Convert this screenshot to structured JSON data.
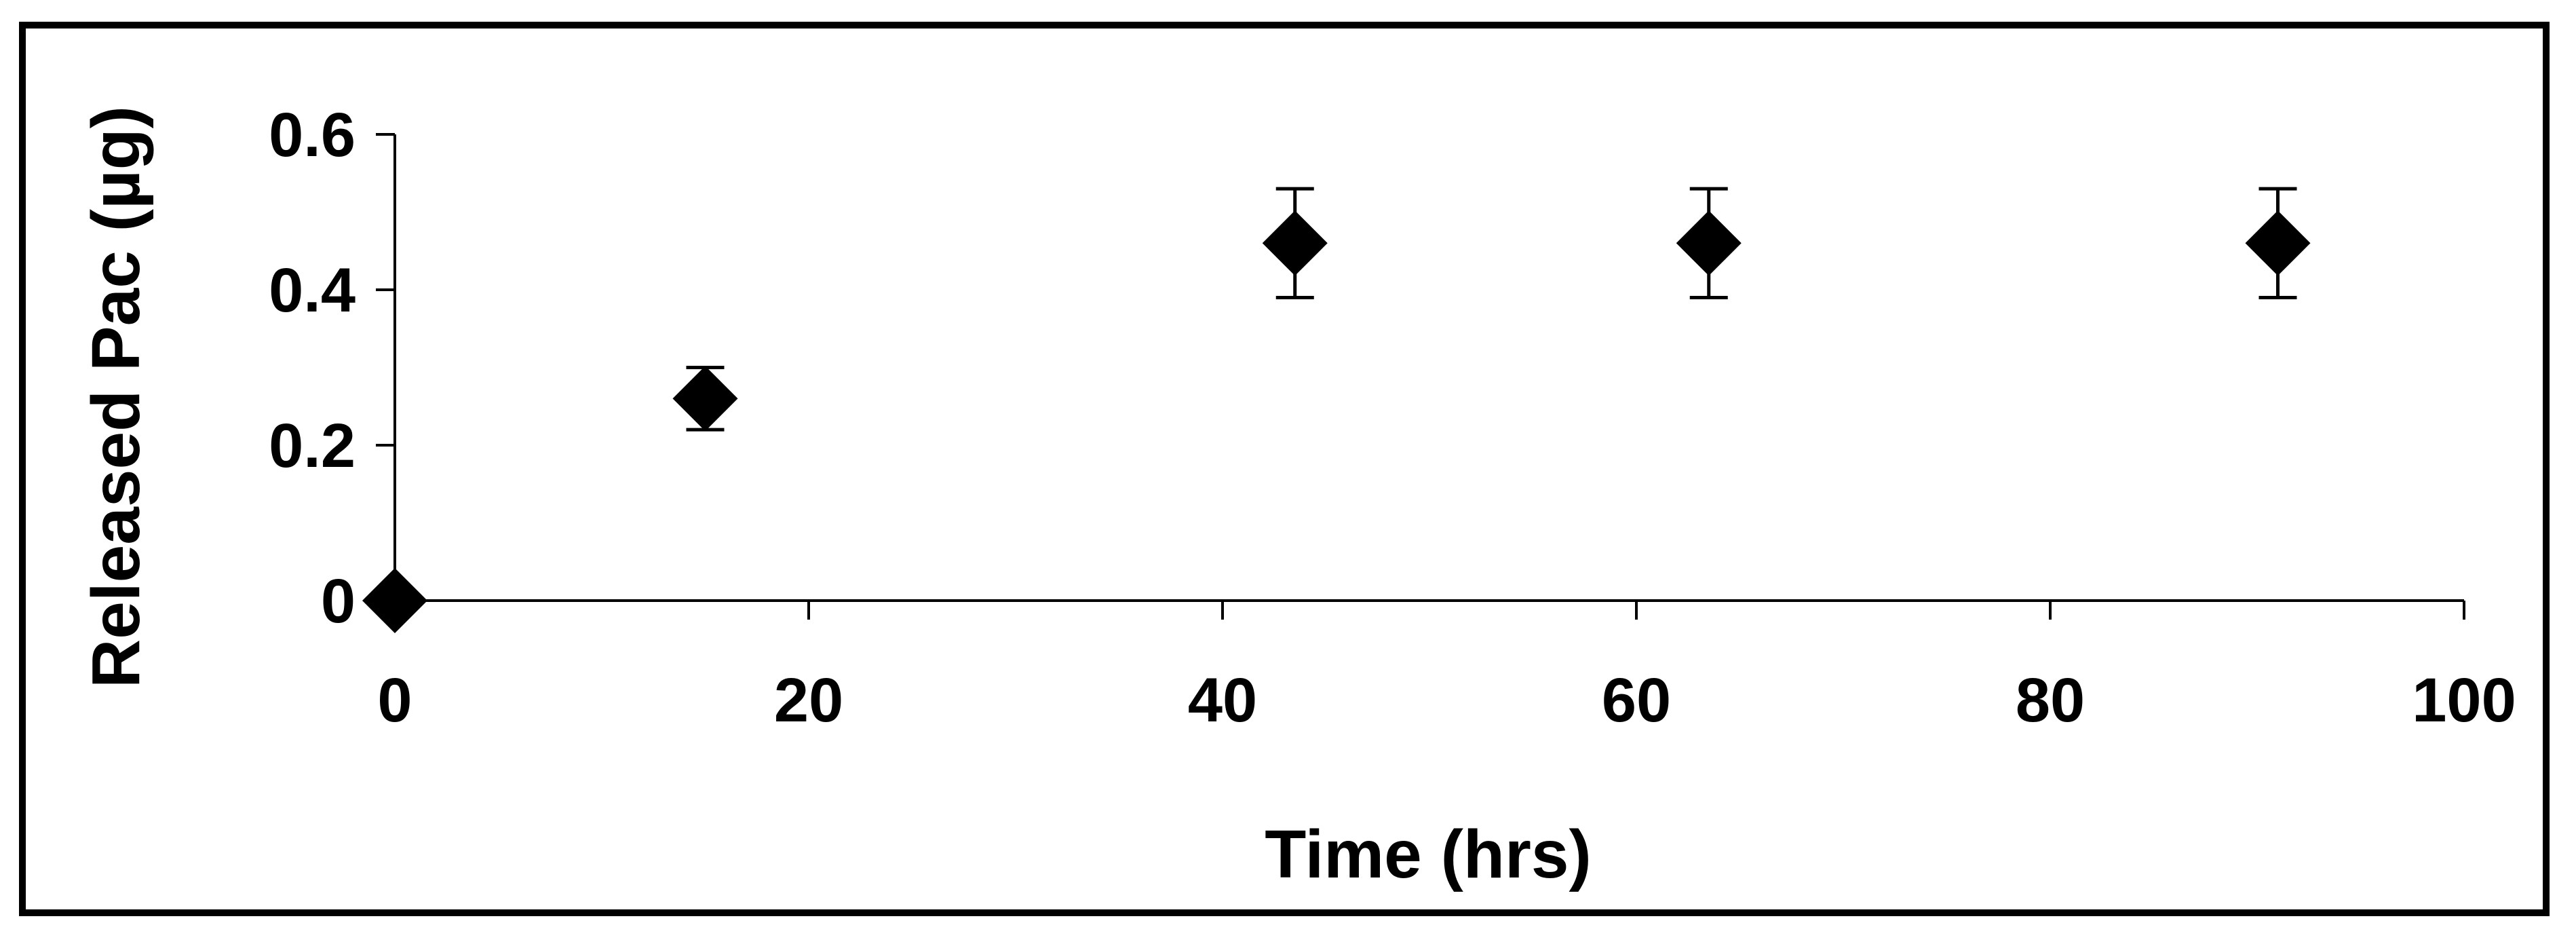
{
  "chart_data": {
    "type": "scatter",
    "title": "",
    "xlabel": "Time (hrs)",
    "ylabel": "Released Pac (µg)",
    "xlim": [
      0,
      100
    ],
    "ylim": [
      0,
      0.6
    ],
    "x_ticks": [
      "0",
      "20",
      "40",
      "60",
      "80",
      "100"
    ],
    "y_ticks": [
      "0",
      "0.2",
      "0.4",
      "0.6"
    ],
    "grid": false,
    "legend": "none",
    "marker": "diamond",
    "marker_color": "#000000",
    "series": [
      {
        "points": [
          {
            "x": 0,
            "y": 0,
            "err": 0
          },
          {
            "x": 15,
            "y": 0.26,
            "err": 0.04
          },
          {
            "x": 43.5,
            "y": 0.46,
            "err": 0.07
          },
          {
            "x": 63.5,
            "y": 0.46,
            "err": 0.07
          },
          {
            "x": 91,
            "y": 0.46,
            "err": 0.07
          }
        ]
      }
    ]
  }
}
